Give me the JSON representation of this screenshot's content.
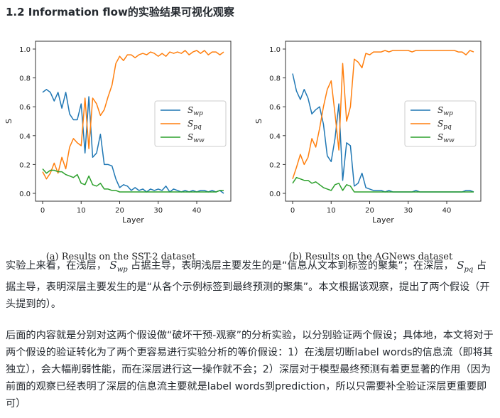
{
  "heading": "1.2 Information flow的实验结果可视化观察",
  "colors": {
    "swp": "#1f77b4",
    "spq": "#ff7f0e",
    "sww": "#2ca02c"
  },
  "chart_data": [
    {
      "type": "line",
      "caption": "(a) Results on the SST-2 dataset",
      "xlabel": "Layer",
      "ylabel": "S",
      "xlim": [
        0,
        47
      ],
      "ylim": [
        0,
        1.0
      ],
      "xticks": [
        "0",
        "10",
        "20",
        "30",
        "40"
      ],
      "yticks": [
        "0.0",
        "0.2",
        "0.4",
        "0.6",
        "0.8",
        "1.0"
      ],
      "legend": "center-right",
      "series": [
        {
          "name": "Swp",
          "color": "#1f77b4",
          "values": [
            0.7,
            0.72,
            0.7,
            0.64,
            0.7,
            0.59,
            0.7,
            0.55,
            0.51,
            0.51,
            0.62,
            0.28,
            0.67,
            0.25,
            0.28,
            0.41,
            0.2,
            0.2,
            0.19,
            0.1,
            0.04,
            0.06,
            0.05,
            0.02,
            0.04,
            0.02,
            0.03,
            0.01,
            0.03,
            0.02,
            0.03,
            0.02,
            0.05,
            0.01,
            0.03,
            0.02,
            0.01,
            0.02,
            0.01,
            0.02,
            0.01,
            0.02,
            0.02,
            0.01,
            0.02,
            0.01,
            0.02,
            0.0
          ]
        },
        {
          "name": "Spq",
          "color": "#ff7f0e",
          "values": [
            0.15,
            0.1,
            0.14,
            0.21,
            0.14,
            0.25,
            0.17,
            0.32,
            0.38,
            0.35,
            0.33,
            0.66,
            0.31,
            0.66,
            0.62,
            0.54,
            0.58,
            0.67,
            0.75,
            0.9,
            0.95,
            0.92,
            0.96,
            0.96,
            0.94,
            0.96,
            0.97,
            0.96,
            0.98,
            0.97,
            0.95,
            0.97,
            0.95,
            0.98,
            0.97,
            0.98,
            0.97,
            0.99,
            0.96,
            0.98,
            0.99,
            0.97,
            0.99,
            0.96,
            0.98,
            0.98,
            0.96,
            0.98
          ]
        },
        {
          "name": "Sww",
          "color": "#2ca02c",
          "values": [
            0.17,
            0.14,
            0.16,
            0.16,
            0.15,
            0.15,
            0.13,
            0.12,
            0.11,
            0.13,
            0.07,
            0.06,
            0.12,
            0.06,
            0.05,
            0.07,
            0.03,
            0.03,
            0.02,
            0.02,
            0.01,
            0.01,
            0.01,
            0.01,
            0.01,
            0.01,
            0.01,
            0.01,
            0.01,
            0.01,
            0.01,
            0.01,
            0.01,
            0.01,
            0.01,
            0.01,
            0.01,
            0.01,
            0.01,
            0.01,
            0.01,
            0.01,
            0.01,
            0.01,
            0.01,
            0.01,
            0.02,
            0.02
          ]
        }
      ]
    },
    {
      "type": "line",
      "caption": "(b) Results on the AGNews dataset",
      "xlabel": "Layer",
      "ylabel": "S",
      "xlim": [
        0,
        47
      ],
      "ylim": [
        0,
        1.0
      ],
      "xticks": [
        "0",
        "10",
        "20",
        "30",
        "40"
      ],
      "yticks": [
        "0.0",
        "0.2",
        "0.4",
        "0.6",
        "0.8",
        "1.0"
      ],
      "legend": "center-right",
      "series": [
        {
          "name": "Swp",
          "color": "#1f77b4",
          "values": [
            0.83,
            0.71,
            0.65,
            0.72,
            0.66,
            0.55,
            0.58,
            0.6,
            0.48,
            0.26,
            0.22,
            0.38,
            0.62,
            0.09,
            0.35,
            0.33,
            0.05,
            0.07,
            0.14,
            0.04,
            0.03,
            0.02,
            0.02,
            0.02,
            0.01,
            0.02,
            0.01,
            0.01,
            0.01,
            0.01,
            0.01,
            0.01,
            0.02,
            0.01,
            0.01,
            0.01,
            0.01,
            0.01,
            0.01,
            0.01,
            0.01,
            0.01,
            0.01,
            0.01,
            0.01,
            0.02,
            0.02,
            0.01
          ]
        },
        {
          "name": "Spq",
          "color": "#ff7f0e",
          "values": [
            0.1,
            0.18,
            0.27,
            0.2,
            0.25,
            0.38,
            0.32,
            0.45,
            0.6,
            0.72,
            0.78,
            0.55,
            0.3,
            0.9,
            0.5,
            0.6,
            0.93,
            0.91,
            0.87,
            0.97,
            0.96,
            0.98,
            0.98,
            0.98,
            0.99,
            0.98,
            0.99,
            0.99,
            0.99,
            0.99,
            0.99,
            0.98,
            0.99,
            0.99,
            0.99,
            0.99,
            0.99,
            0.99,
            0.99,
            0.99,
            0.99,
            0.99,
            0.99,
            0.98,
            0.98,
            0.96,
            0.99,
            0.98
          ]
        },
        {
          "name": "Sww",
          "color": "#2ca02c",
          "values": [
            0.07,
            0.11,
            0.1,
            0.09,
            0.09,
            0.07,
            0.08,
            0.06,
            0.04,
            0.03,
            0.02,
            0.06,
            0.07,
            0.02,
            0.06,
            0.05,
            0.01,
            0.01,
            0.01,
            0.01,
            0.01,
            0.01,
            0.01,
            0.01,
            0.01,
            0.01,
            0.01,
            0.01,
            0.01,
            0.01,
            0.01,
            0.01,
            0.01,
            0.01,
            0.01,
            0.01,
            0.01,
            0.01,
            0.01,
            0.01,
            0.01,
            0.01,
            0.01,
            0.01,
            0.01,
            0.01,
            0.01,
            0.01
          ]
        }
      ]
    }
  ],
  "legend_labels": [
    {
      "base": "S",
      "sub": "wp"
    },
    {
      "base": "S",
      "sub": "pq"
    },
    {
      "base": "S",
      "sub": "ww"
    }
  ],
  "para1": {
    "a": "实验上来看，在浅层，",
    "m1": {
      "base": "S",
      "sub": "wp"
    },
    "b": "占据主导，表明浅层主要发生的是“信息从文本到标签的聚集”；在深层，",
    "m2": {
      "base": "S",
      "sub": "pq"
    },
    "c": "占据主导，表明深层主要发生的是“从各个示例标签到最终预测的聚集”。本文根据该观察，提出了两个假设（开头提到的）。"
  },
  "para2": "后面的内容就是分别对这两个假设做“破坏干预-观察”的分析实验，以分别验证两个假设；具体地，本文将对于两个假设的验证转化为了两个更容易进行实验分析的等价假设：1）在浅层切断label words的信息流（即将其独立），会大幅削弱性能，而在深层进行这一操作就不会；2）深层对于模型最终预测有着更显著的作用（因为前面的观察已经表明了深层的信息流主要就是label words到prediction，所以只需要补全验证深层更重要即可）"
}
